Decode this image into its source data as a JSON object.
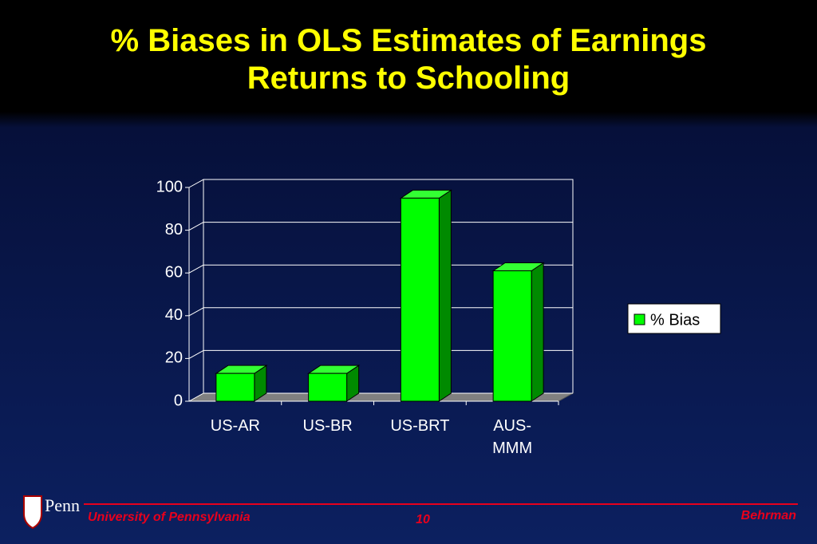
{
  "chart_data": {
    "type": "bar3d",
    "title": "% Biases in OLS Estimates of Earnings Returns to Schooling",
    "categories": [
      "US-AR",
      "US-BR",
      "US-BRT",
      "AUS-MMM"
    ],
    "series": [
      {
        "name": "% Bias",
        "color": "#00ff00",
        "values": [
          13,
          13,
          95,
          61
        ]
      }
    ],
    "ylim": [
      0,
      100
    ],
    "yticks": [
      0,
      20,
      40,
      60,
      80,
      100
    ],
    "grid": true,
    "legend": "right"
  },
  "footer": {
    "logo": "Penn",
    "left": "University of Pennsylvania",
    "page": "10",
    "right": "Behrman"
  }
}
